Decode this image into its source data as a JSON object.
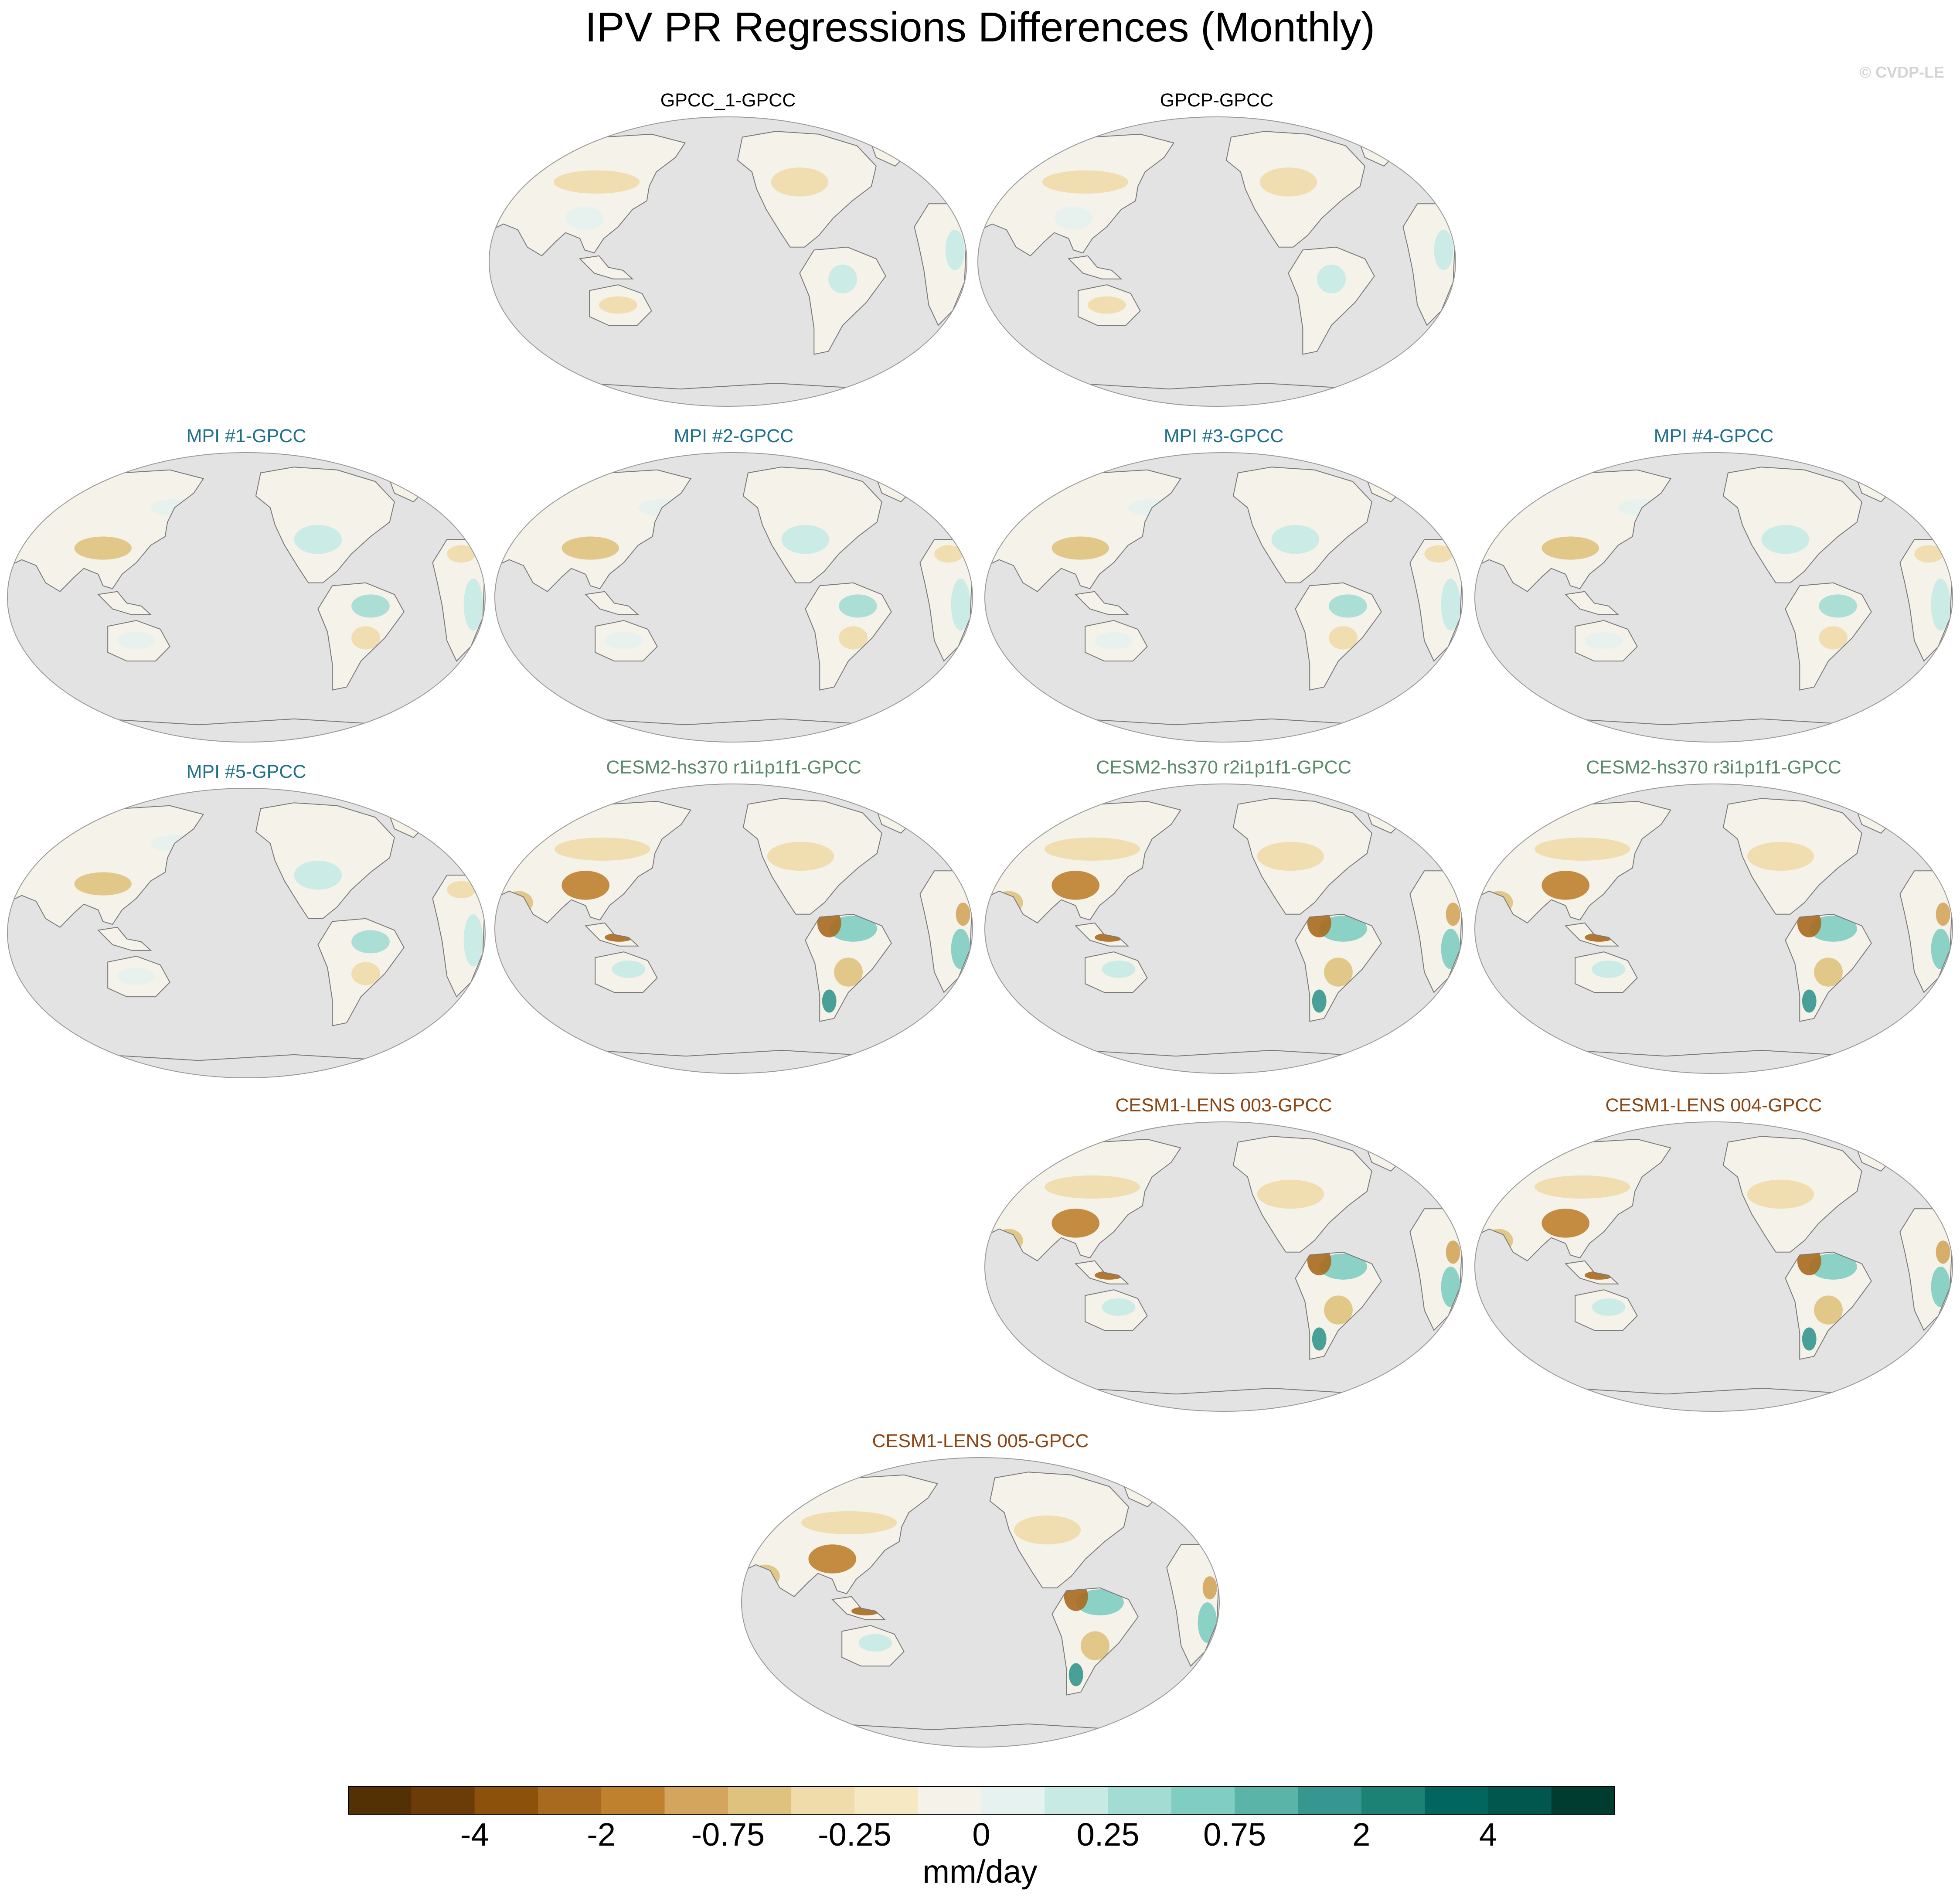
{
  "title": "IPV PR Regressions Differences (Monthly)",
  "watermark": "© CVDP-LE",
  "colors": {
    "ocean": "#e3e3e3",
    "coast": "#7a7a7a",
    "obs_title": "#000000",
    "mpi_title": "#1f6f8b",
    "cesm2_title": "#5a8a6a",
    "cesm1_title": "#8b4513"
  },
  "panels": [
    {
      "id": "p1",
      "label": "GPCC_1-GPCC",
      "group": "obs",
      "pattern": "weak"
    },
    {
      "id": "p2",
      "label": "GPCP-GPCC",
      "group": "obs",
      "pattern": "weak"
    },
    {
      "id": "p3",
      "label": "MPI #1-GPCC",
      "group": "mpi",
      "pattern": "mpi"
    },
    {
      "id": "p4",
      "label": "MPI #2-GPCC",
      "group": "mpi",
      "pattern": "mpi"
    },
    {
      "id": "p5",
      "label": "MPI #3-GPCC",
      "group": "mpi",
      "pattern": "mpi"
    },
    {
      "id": "p6",
      "label": "MPI #4-GPCC",
      "group": "mpi",
      "pattern": "mpi"
    },
    {
      "id": "p7",
      "label": "MPI #5-GPCC",
      "group": "mpi",
      "pattern": "mpi"
    },
    {
      "id": "p8",
      "label": "CESM2-hs370 r1i1p1f1-GPCC",
      "group": "cesm2",
      "pattern": "cesm"
    },
    {
      "id": "p9",
      "label": "CESM2-hs370 r2i1p1f1-GPCC",
      "group": "cesm2",
      "pattern": "cesm"
    },
    {
      "id": "p10",
      "label": "CESM2-hs370 r3i1p1f1-GPCC",
      "group": "cesm2",
      "pattern": "cesm"
    },
    {
      "id": "p11",
      "label": "CESM1-LENS 003-GPCC",
      "group": "cesm1",
      "pattern": "cesm"
    },
    {
      "id": "p12",
      "label": "CESM1-LENS 004-GPCC",
      "group": "cesm1",
      "pattern": "cesm"
    },
    {
      "id": "p13",
      "label": "CESM1-LENS 005-GPCC",
      "group": "cesm1",
      "pattern": "cesm"
    }
  ],
  "colorbar": {
    "units": "mm/day",
    "colors": [
      "#543005",
      "#6b3c08",
      "#8c510a",
      "#a86a1e",
      "#bf812d",
      "#d4a55c",
      "#dfc27d",
      "#f0dcab",
      "#f6e8c3",
      "#f5f2ea",
      "#e6f2ef",
      "#c7eae5",
      "#a3dcd2",
      "#80cdc1",
      "#5ab4a8",
      "#35978f",
      "#1d8276",
      "#01665e",
      "#01564e",
      "#003c30"
    ],
    "tick_labels": [
      "-4",
      "-2",
      "-0.75",
      "-0.25",
      "0",
      "0.25",
      "0.75",
      "2",
      "4"
    ]
  }
}
